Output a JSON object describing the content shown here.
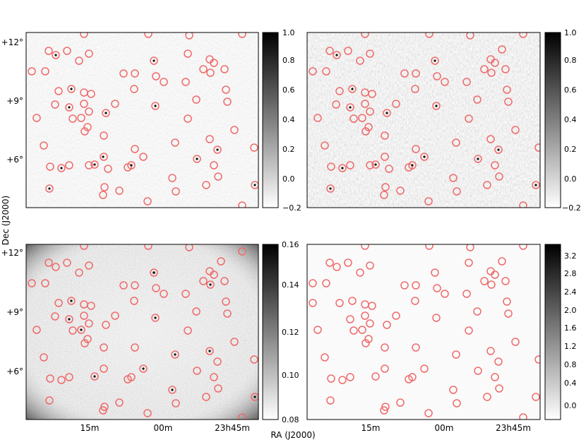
{
  "figure": {
    "xlabel": "RA (J2000)",
    "ylabel": "Dec (J2000)"
  },
  "axes": {
    "dec_tick_labels": [
      "+12°",
      "+9°",
      "+6°"
    ],
    "ra_tick_labels": [
      "15m",
      "00m",
      "23h45m"
    ]
  },
  "colorbars": [
    {
      "id": "top-left-colorbar",
      "ticks": [
        "1.0",
        "0.8",
        "0.6",
        "0.4",
        "0.2",
        "0.0",
        "−0.2"
      ]
    },
    {
      "id": "top-right-colorbar",
      "ticks": [
        "1.0",
        "0.8",
        "0.6",
        "0.4",
        "0.2",
        "0.0",
        "−0.2"
      ]
    },
    {
      "id": "bottom-left-colorbar",
      "ticks": [
        "0.16",
        "0.14",
        "0.12",
        "0.10",
        "0.08"
      ]
    },
    {
      "id": "bottom-right-colorbar",
      "ticks": [
        "3.2",
        "2.8",
        "2.4",
        "2.0",
        "1.6",
        "1.2",
        "0.8",
        "0.4",
        "0.0"
      ]
    }
  ],
  "colors": {
    "marker": "#f06a6a",
    "panel_light": "#e6e6e6",
    "panel_dark": "#555555"
  }
}
